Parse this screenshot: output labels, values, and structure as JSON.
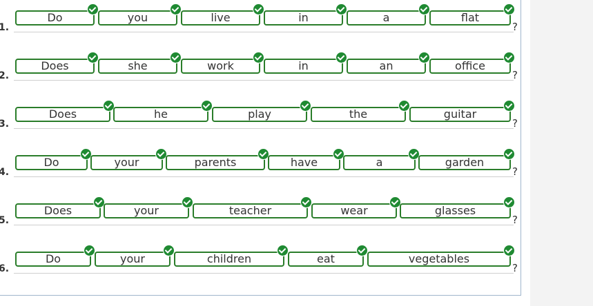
{
  "rows": [
    {
      "number": "1.",
      "words": [
        "Do",
        "you",
        "live",
        "in",
        "a",
        "flat"
      ],
      "punct": "?"
    },
    {
      "number": "2.",
      "words": [
        "Does",
        "she",
        "work",
        "in",
        "an",
        "office"
      ],
      "punct": "?"
    },
    {
      "number": "3.",
      "words": [
        "Does",
        "he",
        "play",
        "the",
        "guitar"
      ],
      "punct": "?"
    },
    {
      "number": "4.",
      "words": [
        "Do",
        "your",
        "parents",
        "have",
        "a",
        "garden"
      ],
      "punct": "?"
    },
    {
      "number": "5.",
      "words": [
        "Does",
        "your",
        "teacher",
        "wear",
        "glasses"
      ],
      "punct": "?"
    },
    {
      "number": "6.",
      "words": [
        "Do",
        "your",
        "children",
        "eat",
        "vegetables"
      ],
      "punct": "?"
    }
  ],
  "colors": {
    "tile_border": "#2a7d2a",
    "check_bg": "#1f8a32"
  },
  "icons": {
    "status": "check-icon"
  }
}
